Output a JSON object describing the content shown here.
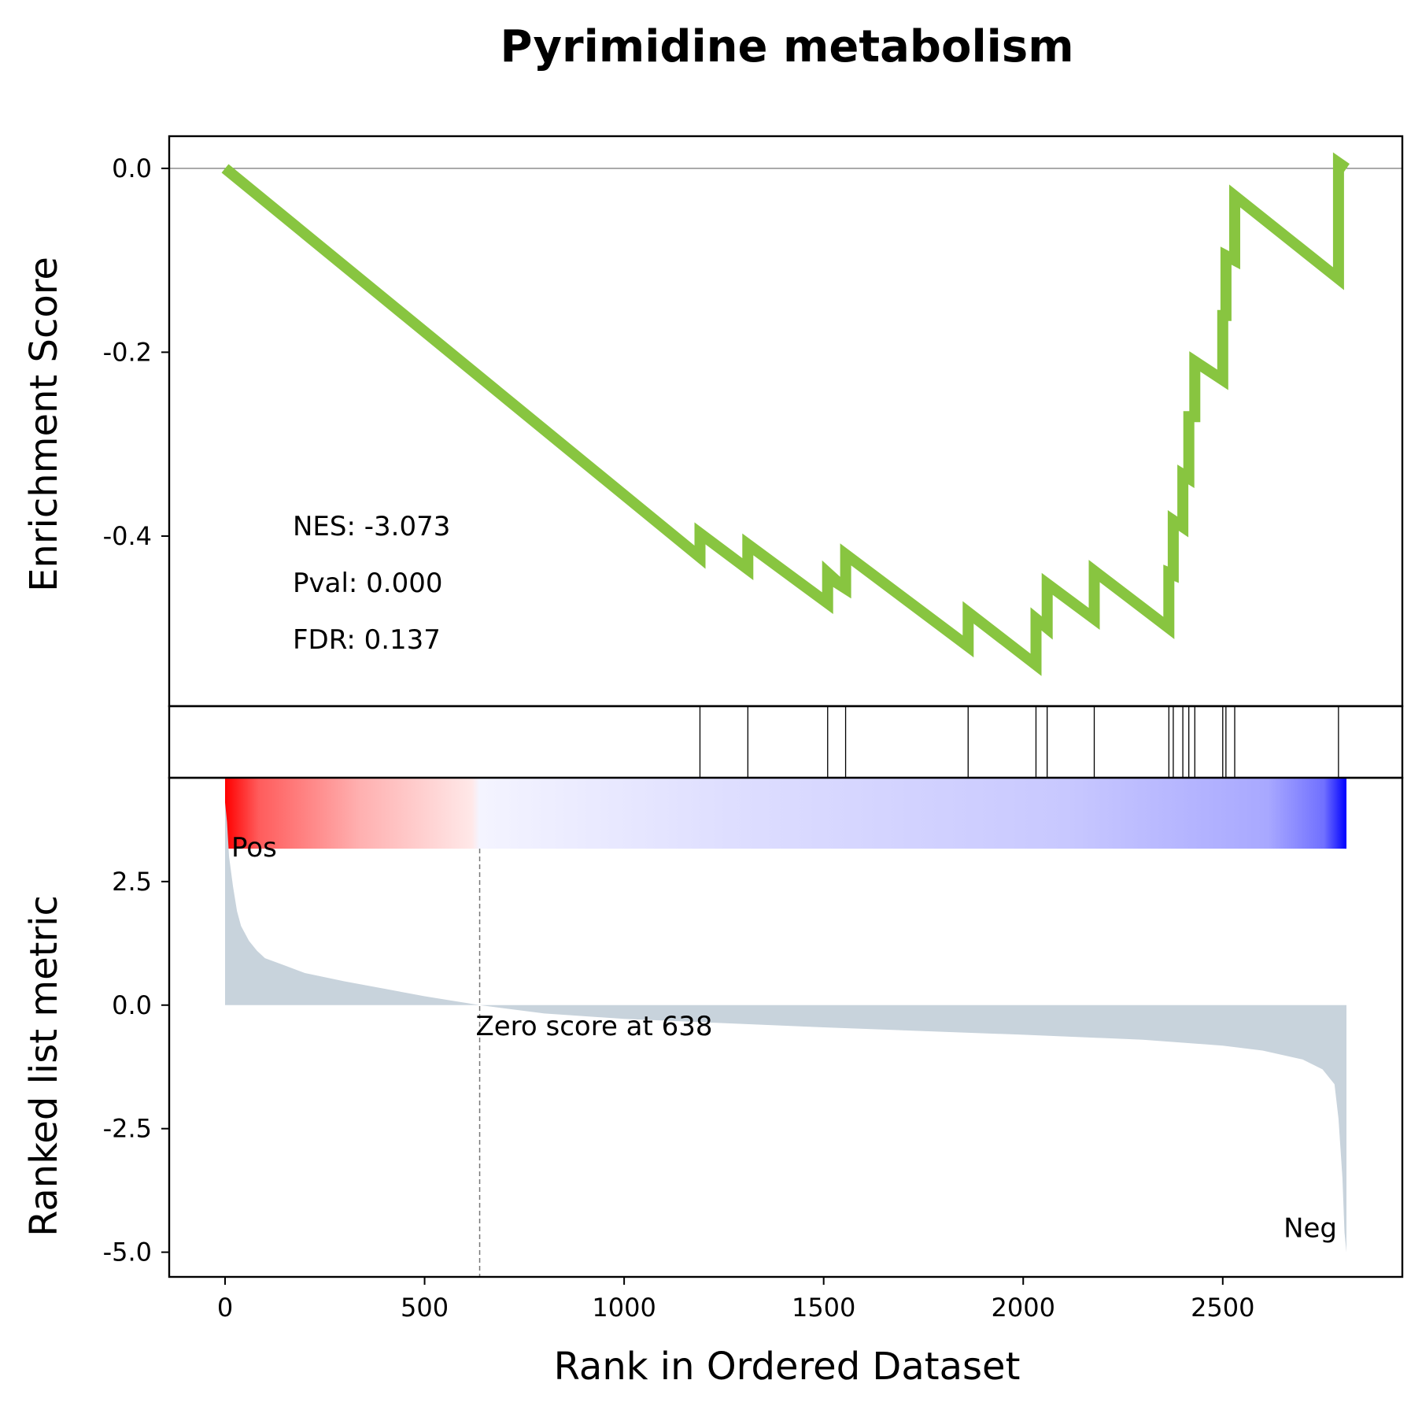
{
  "chart_data": {
    "type": "line",
    "title": "Pyrimidine metabolism",
    "xlabel": "Rank in Ordered Dataset",
    "x_ticks": [
      0,
      500,
      1000,
      1500,
      2000,
      2500
    ],
    "xlim": [
      -140,
      2950
    ],
    "n_genes": 2810,
    "colors": {
      "es_line": "#88c540",
      "metric_fill": "#c8d3dc",
      "pos": "#ff0000",
      "neg": "#0000ff"
    },
    "enrichment": {
      "ylabel": "Enrichment Score",
      "y_ticks": [
        0.0,
        -0.2,
        -0.4
      ],
      "y_tick_labels": [
        "0.0",
        "-0.2",
        "-0.4"
      ],
      "ylim": [
        -0.585,
        0.035
      ],
      "series": {
        "x": [
          0,
          1190,
          1190,
          1310,
          1310,
          1510,
          1510,
          1530,
          1530,
          1555,
          1555,
          1862,
          1862,
          2032,
          2032,
          2060,
          2060,
          2178,
          2178,
          2365,
          2365,
          2376,
          2376,
          2400,
          2400,
          2415,
          2415,
          2430,
          2430,
          2500,
          2500,
          2508,
          2508,
          2530,
          2530,
          2790,
          2790,
          2810
        ],
        "y": [
          0.0,
          -0.423,
          -0.397,
          -0.436,
          -0.409,
          -0.473,
          -0.44,
          -0.448,
          -0.45,
          -0.457,
          -0.42,
          -0.52,
          -0.483,
          -0.54,
          -0.49,
          -0.5,
          -0.452,
          -0.49,
          -0.438,
          -0.5,
          -0.44,
          -0.442,
          -0.383,
          -0.39,
          -0.333,
          -0.337,
          -0.27,
          -0.27,
          -0.21,
          -0.23,
          -0.16,
          -0.16,
          -0.095,
          -0.1,
          -0.03,
          -0.12,
          0.006,
          0.0
        ]
      },
      "stats": [
        "NES: -3.073",
        "Pval: 0.000",
        "FDR: 0.137"
      ]
    },
    "hits": [
      1190,
      1310,
      1510,
      1555,
      1862,
      2032,
      2060,
      2178,
      2365,
      2376,
      2400,
      2415,
      2430,
      2500,
      2508,
      2530,
      2790
    ],
    "ranked_metric": {
      "ylabel": "Ranked list metric",
      "y_ticks": [
        2.5,
        0.0,
        -2.5,
        -5.0
      ],
      "y_tick_labels": [
        "2.5",
        "0.0",
        "-2.5",
        "-5.0"
      ],
      "ylim": [
        -5.5,
        4.6
      ],
      "zero_cross": 638,
      "zero_label": "Zero score at 638",
      "pos_label": "Pos",
      "neg_label": "Neg",
      "curve": {
        "x": [
          0,
          5,
          10,
          20,
          30,
          40,
          60,
          80,
          100,
          150,
          200,
          300,
          400,
          500,
          638,
          800,
          1000,
          1500,
          2000,
          2300,
          2500,
          2600,
          2700,
          2750,
          2780,
          2790,
          2800,
          2805,
          2810
        ],
        "y": [
          4.1,
          3.7,
          3.0,
          2.4,
          1.9,
          1.6,
          1.3,
          1.1,
          0.95,
          0.8,
          0.65,
          0.48,
          0.33,
          0.18,
          0.0,
          -0.17,
          -0.28,
          -0.45,
          -0.6,
          -0.7,
          -0.82,
          -0.92,
          -1.1,
          -1.3,
          -1.6,
          -2.3,
          -3.5,
          -4.6,
          -5.0
        ]
      }
    }
  }
}
